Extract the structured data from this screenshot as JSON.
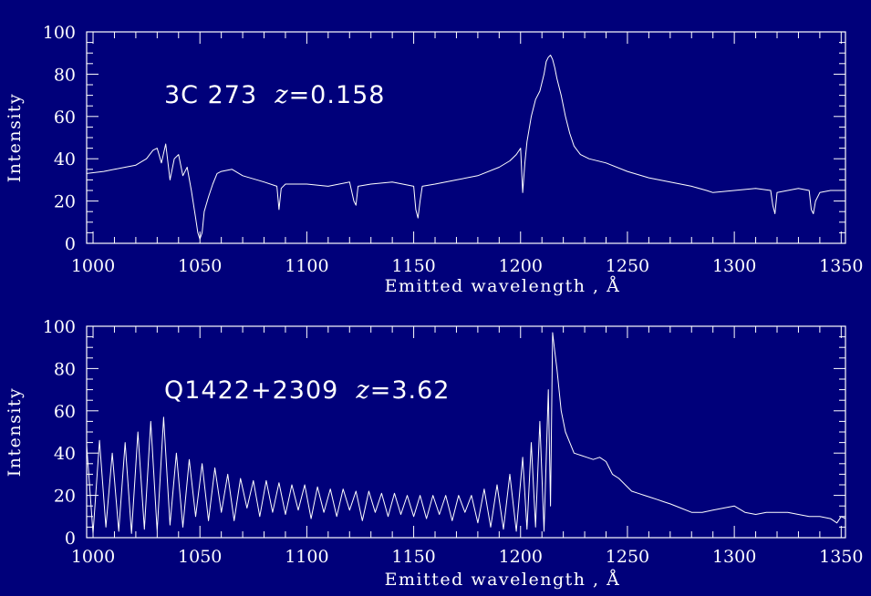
{
  "background_color": "#00007a",
  "foreground_color": "#ffffff",
  "chart_data": [
    {
      "type": "line",
      "title": "",
      "annotation": {
        "object": "3C 273",
        "z_symbol": "z",
        "z_value": "=0.158"
      },
      "xlabel": "Emitted wavelength , Å",
      "ylabel": "Intensity",
      "xlim": [
        997,
        1352
      ],
      "ylim": [
        0,
        100
      ],
      "xticks": [
        1000,
        1050,
        1100,
        1150,
        1200,
        1250,
        1300,
        1350
      ],
      "yticks": [
        0,
        20,
        40,
        60,
        80,
        100
      ],
      "grid": false,
      "series": [
        {
          "x": [
            997,
            1005,
            1010,
            1015,
            1020,
            1025,
            1028,
            1030,
            1032,
            1034,
            1036,
            1038,
            1040,
            1042,
            1044,
            1046,
            1048,
            1049,
            1050,
            1051,
            1052,
            1054,
            1056,
            1058,
            1060,
            1065,
            1070,
            1080,
            1086,
            1087,
            1088,
            1090,
            1100,
            1110,
            1120,
            1122,
            1123,
            1124,
            1130,
            1140,
            1150,
            1151,
            1152,
            1153,
            1154,
            1160,
            1170,
            1180,
            1190,
            1195,
            1198,
            1200,
            1201,
            1202,
            1203,
            1205,
            1207,
            1209,
            1211,
            1212,
            1213,
            1214,
            1215,
            1216,
            1217,
            1219,
            1221,
            1223,
            1225,
            1228,
            1232,
            1240,
            1250,
            1260,
            1270,
            1280,
            1287,
            1290,
            1300,
            1310,
            1317,
            1318,
            1319,
            1320,
            1330,
            1335,
            1336,
            1337,
            1338,
            1340,
            1345,
            1352
          ],
          "y": [
            33,
            34,
            35,
            36,
            37,
            40,
            44,
            45,
            38,
            47,
            30,
            40,
            42,
            32,
            36,
            25,
            12,
            5,
            2,
            5,
            15,
            22,
            28,
            33,
            34,
            35,
            32,
            29,
            27,
            16,
            26,
            28,
            28,
            27,
            29,
            20,
            18,
            27,
            28,
            29,
            27,
            16,
            12,
            20,
            27,
            28,
            30,
            32,
            36,
            39,
            42,
            45,
            24,
            38,
            48,
            60,
            68,
            72,
            80,
            86,
            88,
            89,
            87,
            83,
            78,
            70,
            60,
            52,
            46,
            42,
            40,
            38,
            34,
            31,
            29,
            27,
            25,
            24,
            25,
            26,
            25,
            18,
            14,
            24,
            26,
            25,
            16,
            14,
            20,
            24,
            25,
            25
          ]
        }
      ]
    },
    {
      "type": "line",
      "title": "",
      "annotation": {
        "object": "Q1422+2309",
        "z_symbol": "z",
        "z_value": "=3.62"
      },
      "xlabel": "Emitted wavelength , Å",
      "ylabel": "Intensity",
      "xlim": [
        997,
        1352
      ],
      "ylim": [
        0,
        100
      ],
      "xticks": [
        1000,
        1050,
        1100,
        1150,
        1200,
        1250,
        1300,
        1350
      ],
      "yticks": [
        0,
        20,
        40,
        60,
        80,
        100
      ],
      "grid": false,
      "series": [
        {
          "x": [
            997,
            1000,
            1003,
            1006,
            1009,
            1012,
            1015,
            1018,
            1021,
            1024,
            1027,
            1030,
            1033,
            1036,
            1039,
            1042,
            1045,
            1048,
            1051,
            1054,
            1057,
            1060,
            1063,
            1066,
            1069,
            1072,
            1075,
            1078,
            1081,
            1084,
            1087,
            1090,
            1093,
            1096,
            1099,
            1102,
            1105,
            1108,
            1111,
            1114,
            1117,
            1120,
            1123,
            1126,
            1129,
            1132,
            1135,
            1138,
            1141,
            1144,
            1147,
            1150,
            1153,
            1156,
            1159,
            1162,
            1165,
            1168,
            1171,
            1174,
            1177,
            1180,
            1183,
            1186,
            1189,
            1192,
            1195,
            1198,
            1201,
            1203,
            1205,
            1207,
            1209,
            1211,
            1213,
            1214,
            1215,
            1216,
            1217,
            1219,
            1221,
            1223,
            1225,
            1228,
            1231,
            1234,
            1237,
            1240,
            1243,
            1246,
            1249,
            1252,
            1255,
            1258,
            1261,
            1264,
            1267,
            1270,
            1275,
            1280,
            1285,
            1290,
            1295,
            1300,
            1305,
            1310,
            1315,
            1320,
            1325,
            1330,
            1335,
            1340,
            1345,
            1348,
            1350,
            1352
          ],
          "y": [
            44,
            2,
            46,
            5,
            40,
            3,
            45,
            2,
            50,
            4,
            55,
            3,
            57,
            6,
            40,
            5,
            37,
            10,
            35,
            8,
            33,
            12,
            30,
            8,
            28,
            14,
            27,
            10,
            27,
            12,
            26,
            11,
            25,
            13,
            25,
            9,
            24,
            12,
            23,
            10,
            23,
            13,
            22,
            8,
            22,
            12,
            21,
            10,
            21,
            11,
            20,
            10,
            20,
            9,
            20,
            11,
            20,
            8,
            20,
            12,
            20,
            7,
            23,
            5,
            25,
            4,
            30,
            3,
            38,
            4,
            45,
            5,
            55,
            3,
            70,
            15,
            97,
            88,
            80,
            60,
            50,
            45,
            40,
            39,
            38,
            37,
            38,
            36,
            30,
            28,
            25,
            22,
            21,
            20,
            19,
            18,
            17,
            16,
            14,
            12,
            12,
            13,
            14,
            15,
            12,
            11,
            12,
            12,
            12,
            11,
            10,
            10,
            9,
            7,
            10,
            9
          ]
        }
      ]
    }
  ]
}
